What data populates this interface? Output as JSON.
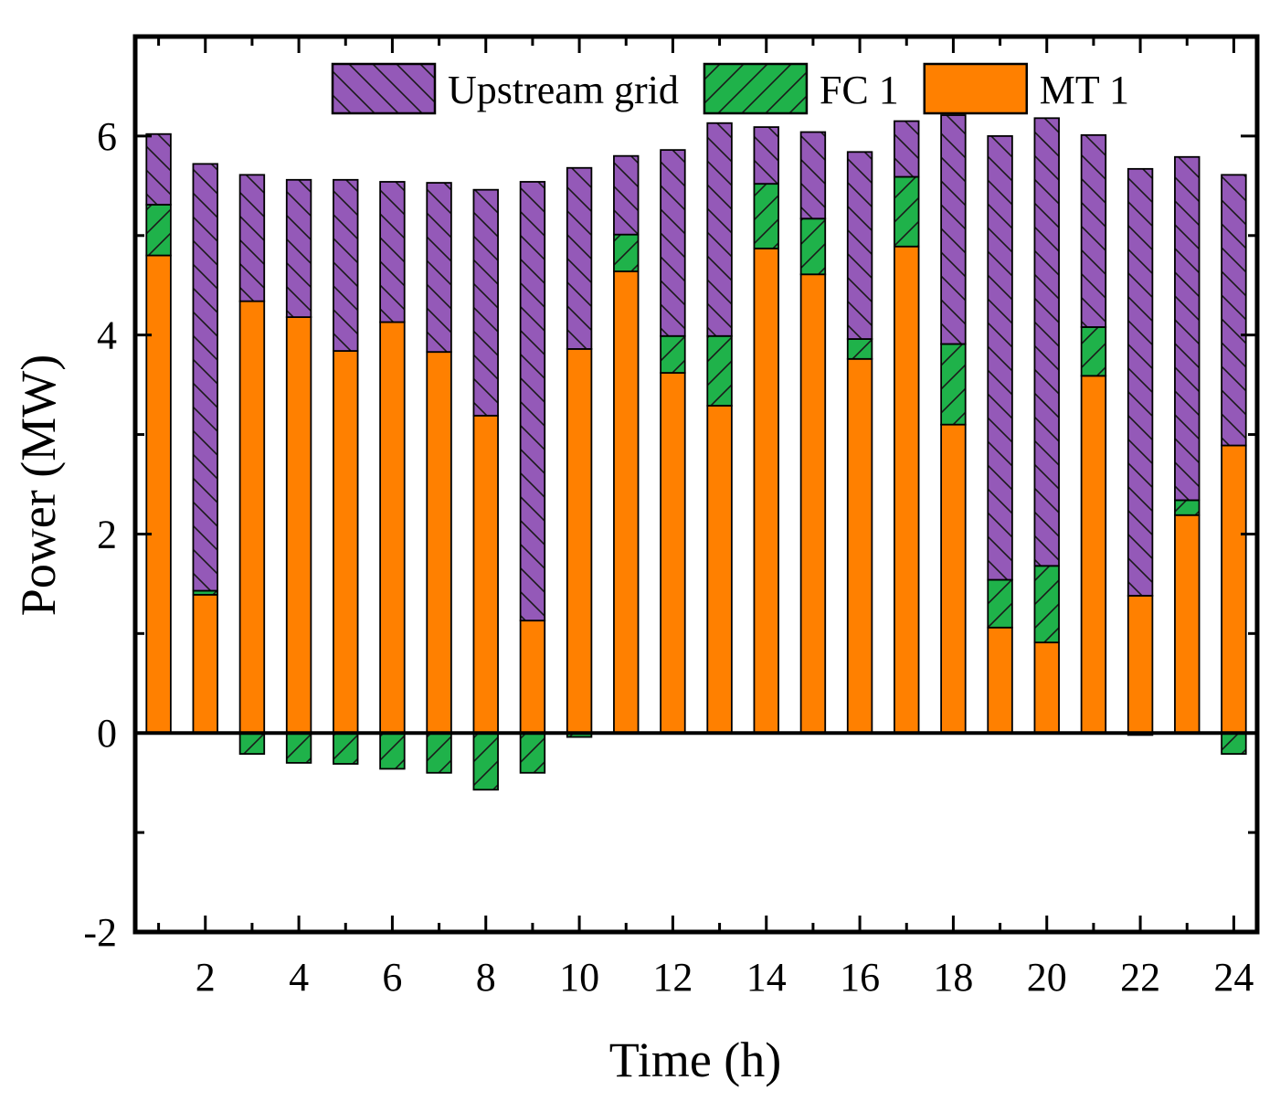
{
  "chart_data": {
    "type": "bar",
    "stacked": true,
    "title": "",
    "xlabel": "Time (h)",
    "ylabel": "Power (MW)",
    "xlim": [
      0.5,
      24.5
    ],
    "ylim": [
      -2,
      7
    ],
    "x": [
      1,
      2,
      3,
      4,
      5,
      6,
      7,
      8,
      9,
      10,
      11,
      12,
      13,
      14,
      15,
      16,
      17,
      18,
      19,
      20,
      21,
      22,
      23,
      24
    ],
    "xticks": [
      2,
      4,
      6,
      8,
      10,
      12,
      14,
      16,
      18,
      20,
      22,
      24
    ],
    "xtick_labels": [
      "2",
      "4",
      "6",
      "8",
      "10",
      "12",
      "14",
      "16",
      "18",
      "20",
      "22",
      "24"
    ],
    "yticks": [
      -2,
      0,
      2,
      4,
      6
    ],
    "ytick_labels": [
      "-2",
      "0",
      "2",
      "4",
      "6"
    ],
    "grid": false,
    "legend_position": "top-right",
    "series": [
      {
        "name": "MT 1",
        "color": "#ff8000",
        "pattern": "solid",
        "values": [
          4.8,
          1.39,
          4.34,
          4.18,
          3.84,
          4.13,
          3.83,
          3.19,
          1.13,
          3.86,
          4.64,
          3.62,
          3.29,
          4.87,
          4.61,
          3.76,
          4.89,
          3.1,
          1.06,
          0.91,
          3.59,
          1.38,
          2.19,
          2.89
        ]
      },
      {
        "name": "FC 1",
        "color": "#1fb24a",
        "pattern": "forward-hatch",
        "values": [
          0.51,
          0.04,
          -0.21,
          -0.3,
          -0.31,
          -0.36,
          -0.4,
          -0.57,
          -0.4,
          -0.04,
          0.37,
          0.37,
          0.7,
          0.65,
          0.56,
          0.2,
          0.7,
          0.81,
          0.48,
          0.77,
          0.49,
          -0.02,
          0.15,
          -0.21
        ]
      },
      {
        "name": "Upstream grid",
        "color": "#9459b8",
        "pattern": "back-hatch",
        "values": [
          0.71,
          4.29,
          1.27,
          1.38,
          1.72,
          1.41,
          1.7,
          2.27,
          4.41,
          1.82,
          0.79,
          1.87,
          2.14,
          0.57,
          0.87,
          1.88,
          0.56,
          2.3,
          4.46,
          4.5,
          1.93,
          4.29,
          3.45,
          2.72
        ]
      }
    ],
    "legend": [
      {
        "name": "Upstream grid",
        "color": "#9459b8",
        "pattern": "back-hatch"
      },
      {
        "name": "FC 1",
        "color": "#1fb24a",
        "pattern": "forward-hatch"
      },
      {
        "name": "MT 1",
        "color": "#ff8000",
        "pattern": "solid"
      }
    ]
  }
}
